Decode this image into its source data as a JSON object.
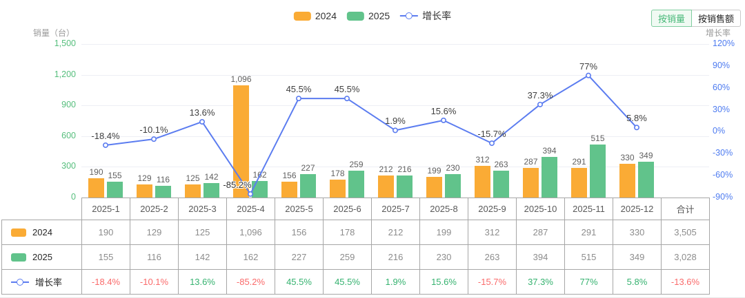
{
  "toolbar": {
    "by_volume_label": "按销量",
    "by_amount_label": "按销售额"
  },
  "chart_data": {
    "type": "combo-bar-line",
    "legend_position": "top-center",
    "grid": true,
    "categories": [
      "2025-1",
      "2025-2",
      "2025-3",
      "2025-4",
      "2025-5",
      "2025-6",
      "2025-7",
      "2025-8",
      "2025-9",
      "2025-10",
      "2025-11",
      "2025-12"
    ],
    "series": [
      {
        "name": "2024",
        "type": "bar",
        "color": "#FAAB35",
        "values": [
          190,
          129,
          125,
          1096,
          156,
          178,
          212,
          199,
          312,
          287,
          291,
          330
        ],
        "total": 3505
      },
      {
        "name": "2025",
        "type": "bar",
        "color": "#61C38B",
        "values": [
          155,
          116,
          142,
          162,
          227,
          259,
          216,
          230,
          263,
          394,
          515,
          349
        ],
        "total": 3028
      },
      {
        "name": "增长率",
        "type": "line",
        "color": "#5B7CF0",
        "unit": "%",
        "values": [
          -18.4,
          -10.1,
          13.6,
          -85.2,
          45.5,
          45.5,
          1.9,
          15.6,
          -15.7,
          37.3,
          77,
          5.8
        ],
        "labels": [
          "-18.4%",
          "-10.1%",
          "13.6%",
          "-85.2%",
          "45.5%",
          "45.5%",
          "1.9%",
          "15.6%",
          "-15.7%",
          "37.3%",
          "77%",
          "5.8%"
        ],
        "total_label": "-13.6%"
      }
    ],
    "left_axis": {
      "title": "销量（台）",
      "min": 0,
      "max": 1500,
      "tick_values": [
        0,
        300,
        600,
        900,
        1200,
        1500
      ],
      "tick_labels": [
        "0",
        "300",
        "600",
        "900",
        "1,200",
        "1,500"
      ]
    },
    "right_axis": {
      "title": "增长率",
      "min": -90,
      "max": 120,
      "tick_values": [
        -90,
        -60,
        -30,
        0,
        30,
        60,
        90,
        120
      ],
      "tick_labels": [
        "-90%",
        "-60%",
        "-30%",
        "0%",
        "30%",
        "60%",
        "90%",
        "120%"
      ]
    }
  },
  "table": {
    "total_header": "合计"
  },
  "colors": {
    "positive": "#35B26F",
    "negative": "#FA6A6A",
    "axis_left_label": "#55BE7C",
    "axis_right_label": "#4D7BF0",
    "table_border": "#A6A6A6"
  }
}
